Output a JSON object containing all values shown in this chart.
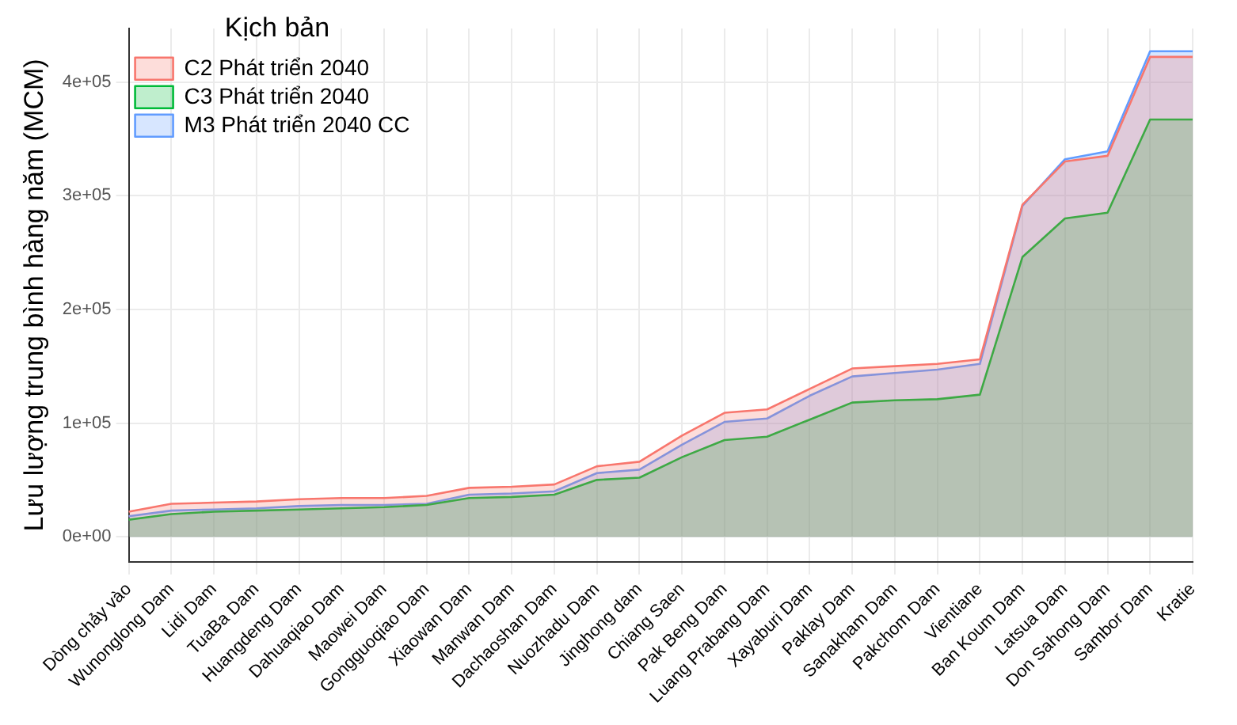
{
  "chart_data": {
    "type": "area",
    "ylabel": "Lưu lượng trung bình hàng năm (MCM)",
    "legend_title": "Kịch bản",
    "categories": [
      "Dòng chảy vào",
      "Wunonglong Dam",
      "Lidi Dam",
      "TuaBa Dam",
      "Huangdeng Dam",
      "Dahuaqiao Dam",
      "Maowei Dam",
      "Gongguoqiao Dam",
      "Xiaowan Dam",
      "Manwan Dam",
      "Dachaoshan Dam",
      "Nuozhadu Dam",
      "Jinghong dam",
      "Chiang Saen",
      "Pak Beng Dam",
      "Luang Prabang Dam",
      "Xayaburi Dam",
      "Paklay Dam",
      "Sanakham Dam",
      "Pakchom Dam",
      "Vientiane",
      "Ban Koum Dam",
      "Latsua Dam",
      "Don Sahong Dam",
      "Sambor Dam",
      "Kratie"
    ],
    "series": [
      {
        "name": "C2 Phát triển 2040",
        "color": "#f8766d",
        "values": [
          22000,
          29000,
          30000,
          31000,
          33000,
          34000,
          34000,
          36000,
          43000,
          44000,
          46000,
          62000,
          66000,
          89000,
          109000,
          112000,
          130000,
          148000,
          150000,
          152000,
          156000,
          292000,
          330000,
          335000,
          422000,
          422000
        ]
      },
      {
        "name": "C3 Phát triển 2040",
        "color": "#00ba38",
        "values": [
          15000,
          20000,
          22000,
          23000,
          24000,
          25000,
          26000,
          28000,
          34000,
          35000,
          37000,
          50000,
          52000,
          70000,
          85000,
          88000,
          103000,
          118000,
          120000,
          121000,
          125000,
          246000,
          280000,
          285000,
          367000,
          367000
        ]
      },
      {
        "name": "M3 Phát triển 2040 CC",
        "color": "#619cff",
        "values": [
          18000,
          23000,
          24000,
          25000,
          27000,
          28000,
          28000,
          29000,
          37000,
          38000,
          40000,
          56000,
          59000,
          81000,
          101000,
          104000,
          124000,
          141000,
          144000,
          147000,
          152000,
          291000,
          332000,
          339000,
          427000,
          427000
        ]
      }
    ],
    "ylim": [
      -22000,
      447000
    ],
    "yticks": [
      {
        "value": 0,
        "label": "0e+00"
      },
      {
        "value": 100000,
        "label": "1e+05"
      },
      {
        "value": 200000,
        "label": "2e+05"
      },
      {
        "value": 300000,
        "label": "3e+05"
      },
      {
        "value": 400000,
        "label": "4e+05"
      }
    ],
    "grid": true,
    "legend": "top left"
  }
}
